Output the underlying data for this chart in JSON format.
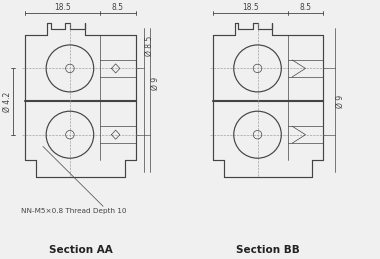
{
  "bg_color": "#f0f0f0",
  "line_color": "#444444",
  "dim_color": "#444444",
  "title_AA": "Section AA",
  "title_BB": "Section BB",
  "annotation": "NN-M5×0.8 Thread Depth 10",
  "dim_185": "18.5",
  "dim_85_top": "8.5",
  "dim_42": "Ø 4.2",
  "dim_85": "Ø 8.5",
  "dim_9_aa": "Ø 9",
  "dim_9_bb": "Ø 9"
}
